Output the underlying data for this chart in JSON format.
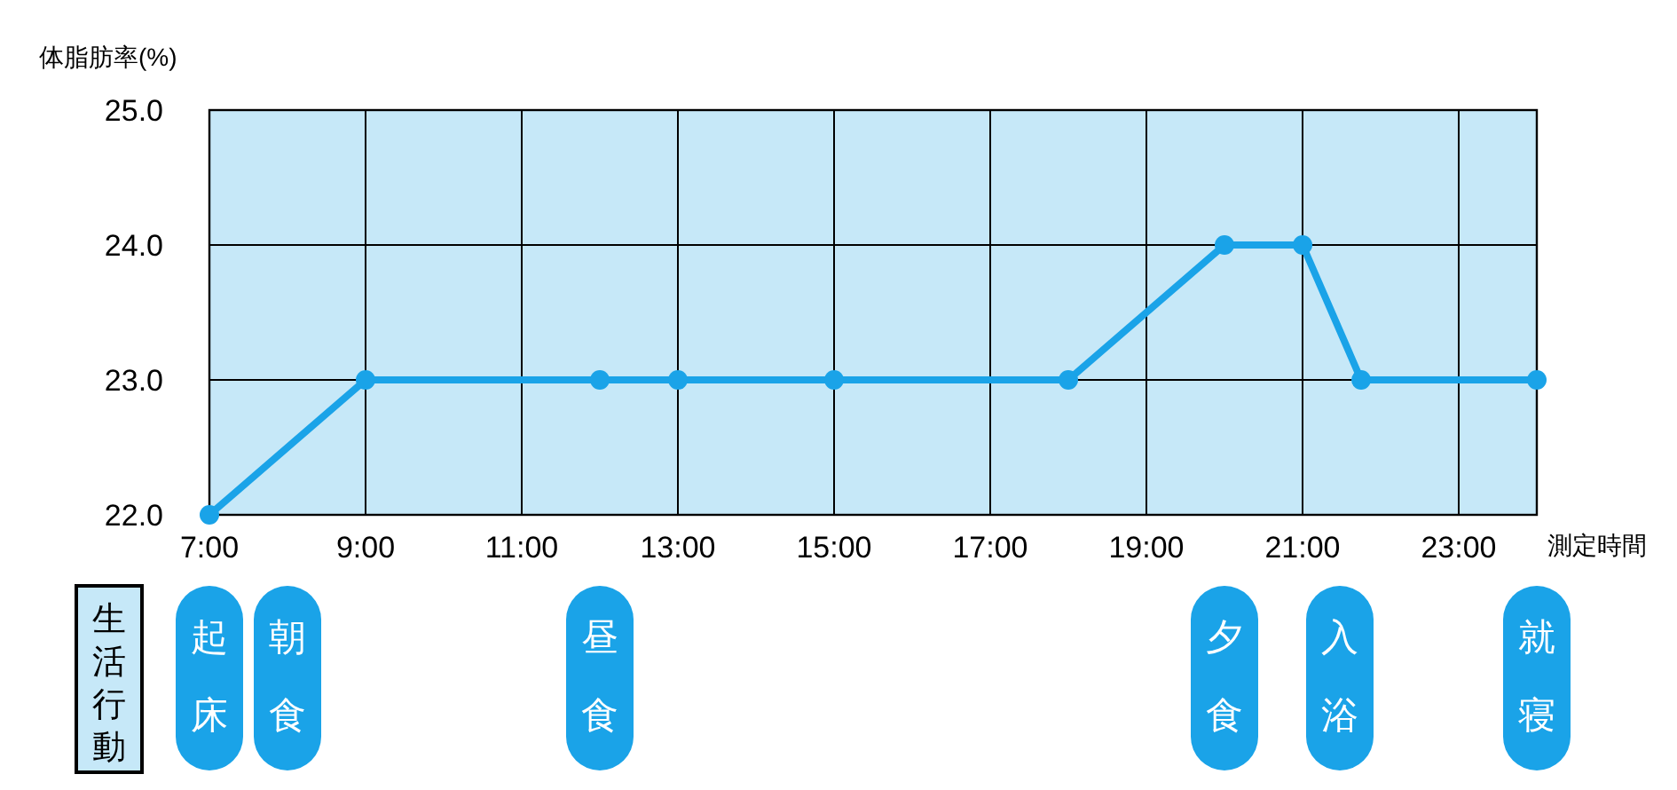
{
  "chart_data": {
    "type": "line",
    "ylabel": "体脂肪率(%)",
    "xlabel": "測定時間",
    "x": [
      7,
      9,
      12,
      13,
      15,
      18,
      20,
      21,
      21.75,
      24
    ],
    "series": [
      {
        "color": "#1aa3e8",
        "values": [
          22,
          23,
          23,
          23,
          23,
          23,
          24,
          24,
          23,
          23
        ]
      }
    ],
    "xlim": [
      7,
      24
    ],
    "xticks": [
      {
        "value": 7,
        "label": "7:00"
      },
      {
        "value": 9,
        "label": "9:00"
      },
      {
        "value": 11,
        "label": "11:00"
      },
      {
        "value": 13,
        "label": "13:00"
      },
      {
        "value": 15,
        "label": "15:00"
      },
      {
        "value": 17,
        "label": "17:00"
      },
      {
        "value": 19,
        "label": "19:00"
      },
      {
        "value": 21,
        "label": "21:00"
      },
      {
        "value": 23,
        "label": "23:00"
      }
    ],
    "ylim": [
      22,
      25
    ],
    "yticks": [
      {
        "value": 22,
        "label": "22.0"
      },
      {
        "value": 23,
        "label": "23.0"
      },
      {
        "value": 24,
        "label": "24.0"
      },
      {
        "value": 25,
        "label": "25.0"
      }
    ],
    "grid": true,
    "marker": "circle",
    "line_style": "solid",
    "annotations": [
      "生活行動",
      "起床",
      "朝食",
      "昼食",
      "夕食",
      "入浴",
      "就寝"
    ]
  }
}
